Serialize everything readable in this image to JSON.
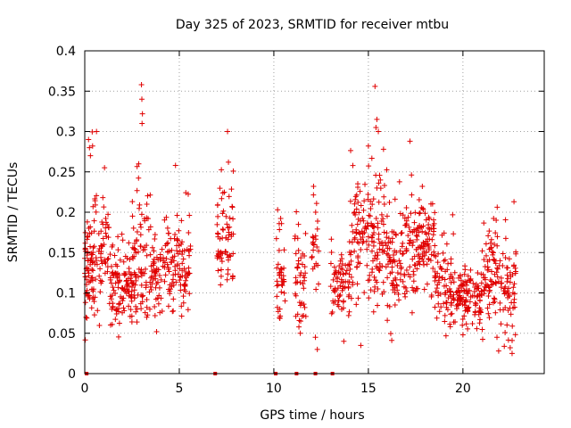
{
  "chart_data": {
    "type": "scatter",
    "title": "Day 325 of 2023, SRMTID for receiver mtbu",
    "xlabel": "GPS time / hours",
    "ylabel": "SRMTID / TECUs",
    "xlim": [
      0,
      24.3
    ],
    "ylim": [
      0,
      0.4
    ],
    "xticks": [
      0,
      5,
      10,
      15,
      20
    ],
    "yticks": [
      0,
      0.05,
      0.1,
      0.15,
      0.2,
      0.25,
      0.3,
      0.35,
      0.4
    ],
    "xtick_labels": [
      "0",
      "5",
      "10",
      "15",
      "20"
    ],
    "ytick_labels": [
      "0",
      "0.05",
      "0.1",
      "0.15",
      "0.2",
      "0.25",
      "0.3",
      "0.35",
      "0.4"
    ],
    "grid": true,
    "marker": "+",
    "color": "#e00000",
    "clusters": [
      {
        "x": [
          0.0,
          0.5
        ],
        "center": 0.125,
        "spread": 0.045,
        "n": 70
      },
      {
        "x": [
          0.5,
          1.3
        ],
        "center": 0.15,
        "spread": 0.05,
        "n": 60
      },
      {
        "x": [
          1.3,
          2.5
        ],
        "center": 0.105,
        "spread": 0.03,
        "n": 110
      },
      {
        "x": [
          2.5,
          3.5
        ],
        "center": 0.14,
        "spread": 0.05,
        "n": 90
      },
      {
        "x": [
          3.5,
          5.0
        ],
        "center": 0.13,
        "spread": 0.035,
        "n": 110
      },
      {
        "x": [
          5.0,
          5.6
        ],
        "center": 0.13,
        "spread": 0.04,
        "n": 50
      },
      {
        "x": [
          7.0,
          7.9
        ],
        "center": 0.16,
        "spread": 0.045,
        "n": 70
      },
      {
        "x": [
          10.1,
          10.6
        ],
        "center": 0.12,
        "spread": 0.035,
        "n": 40
      },
      {
        "x": [
          11.1,
          11.7
        ],
        "center": 0.105,
        "spread": 0.035,
        "n": 45
      },
      {
        "x": [
          12.0,
          12.4
        ],
        "center": 0.16,
        "spread": 0.04,
        "n": 25
      },
      {
        "x": [
          13.0,
          14.0
        ],
        "center": 0.11,
        "spread": 0.03,
        "n": 70
      },
      {
        "x": [
          14.0,
          16.0
        ],
        "center": 0.165,
        "spread": 0.05,
        "n": 170
      },
      {
        "x": [
          16.0,
          17.0
        ],
        "center": 0.125,
        "spread": 0.04,
        "n": 80
      },
      {
        "x": [
          17.0,
          18.5
        ],
        "center": 0.16,
        "spread": 0.04,
        "n": 130
      },
      {
        "x": [
          18.5,
          19.5
        ],
        "center": 0.11,
        "spread": 0.035,
        "n": 80
      },
      {
        "x": [
          19.5,
          21.0
        ],
        "center": 0.09,
        "spread": 0.025,
        "n": 120
      },
      {
        "x": [
          21.0,
          22.0
        ],
        "center": 0.12,
        "spread": 0.04,
        "n": 80
      },
      {
        "x": [
          22.0,
          22.8
        ],
        "center": 0.11,
        "spread": 0.045,
        "n": 60
      }
    ],
    "outliers": [
      {
        "x": 3.0,
        "y": 0.358
      },
      {
        "x": 3.02,
        "y": 0.34
      },
      {
        "x": 3.05,
        "y": 0.322
      },
      {
        "x": 3.03,
        "y": 0.31
      },
      {
        "x": 15.35,
        "y": 0.356
      },
      {
        "x": 15.45,
        "y": 0.315
      },
      {
        "x": 15.4,
        "y": 0.305
      },
      {
        "x": 0.2,
        "y": 0.29
      },
      {
        "x": 0.25,
        "y": 0.28
      },
      {
        "x": 0.3,
        "y": 0.27
      },
      {
        "x": 17.2,
        "y": 0.288
      },
      {
        "x": 15.0,
        "y": 0.282
      },
      {
        "x": 15.8,
        "y": 0.278
      },
      {
        "x": 4.8,
        "y": 0.258
      },
      {
        "x": 7.6,
        "y": 0.262
      },
      {
        "x": 12.1,
        "y": 0.232
      },
      {
        "x": 22.7,
        "y": 0.213
      },
      {
        "x": 22.6,
        "y": 0.025
      },
      {
        "x": 22.5,
        "y": 0.032
      },
      {
        "x": 12.3,
        "y": 0.03
      },
      {
        "x": 12.2,
        "y": 0.045
      },
      {
        "x": 11.4,
        "y": 0.05
      },
      {
        "x": 14.6,
        "y": 0.035
      },
      {
        "x": 13.7,
        "y": 0.04
      },
      {
        "x": 3.8,
        "y": 0.052
      },
      {
        "x": 21.8,
        "y": 0.045
      },
      {
        "x": 20.0,
        "y": 0.048
      },
      {
        "x": 10.2,
        "y": 0.203
      },
      {
        "x": 11.3,
        "y": 0.185
      }
    ],
    "zero_markers": [
      0.1,
      6.9,
      10.1,
      11.2,
      12.2,
      13.1
    ]
  }
}
